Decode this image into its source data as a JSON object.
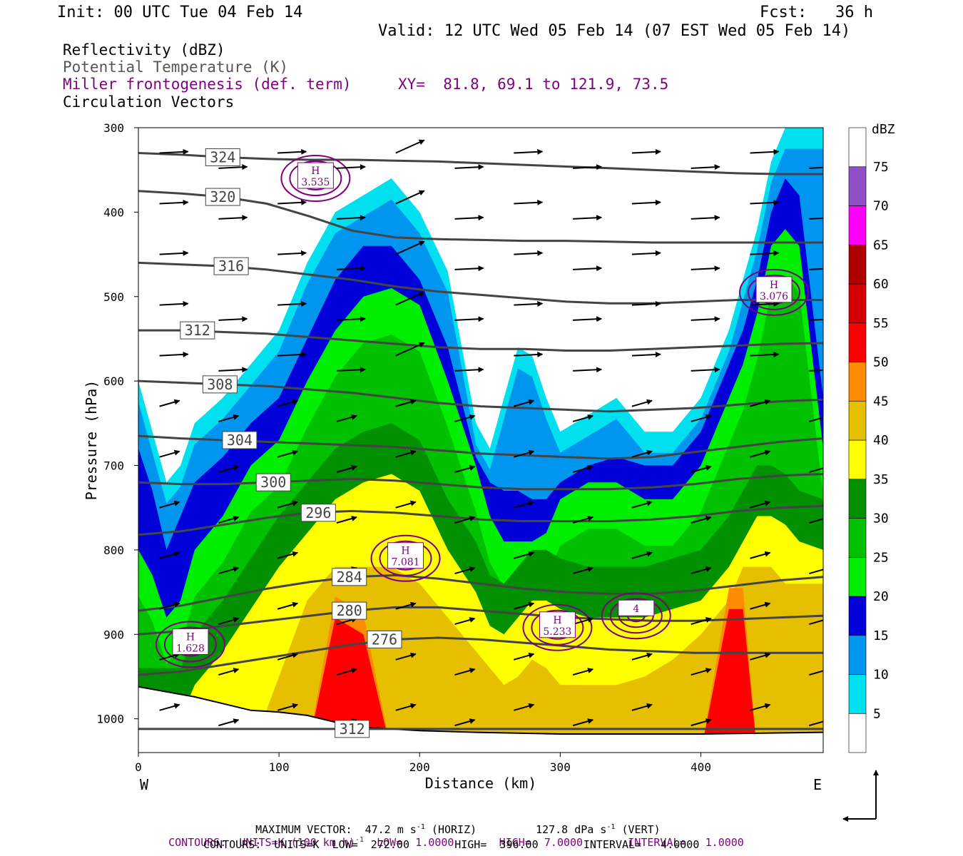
{
  "header": {
    "init": "Init: 00 UTC Tue 04 Feb 14",
    "fcst": "Fcst:   36 h",
    "valid": "Valid: 12 UTC Wed 05 Feb 14 (07 EST Wed 05 Feb 14)"
  },
  "legend": {
    "line1": "Reflectivity (dBZ)",
    "line2": "Potential Temperature (K)",
    "line3": "Miller frontogenesis (def. term)",
    "xy": "XY=  81.8, 69.1 to 121.9, 73.5",
    "line4": "Circulation Vectors"
  },
  "colors": {
    "theta": "#444444",
    "fronto": "#7f007f",
    "vector": "#000000"
  },
  "footer": {
    "max_vector": "MAXIMUM VECTOR:  47.2 m s",
    "max_vector_exp": "-1",
    "max_vector_horiz": " (HORIZ)",
    "max_vector_vert": "127.8 dPa s",
    "max_vector_vert_exp": "-1",
    "max_vector_vert_tail": " (VERT)",
    "contours1": "CONTOURS:  UNITS=K (100 km h)",
    "contours1_exp": "-1",
    "contours1_tail": "  LOW=  1.0000       HIGH=  7.0000       INTERVAL=   1.0000",
    "contours2": "CONTOURS:  UNITS=K  LOW=  272.00       HIGH=  396.00       INTERVAL=   4.0000"
  },
  "chart_data": {
    "type": "heatmap",
    "title": "",
    "xlabel": "Distance (km)",
    "ylabel": "Pressure (hPa)",
    "xlim": [
      0,
      487
    ],
    "ylim": [
      1040,
      300
    ],
    "x_ticks": [
      0,
      100,
      200,
      300,
      400
    ],
    "y_ticks": [
      300,
      400,
      500,
      600,
      700,
      800,
      900,
      1000
    ],
    "x_end_labels": {
      "left": "W",
      "right": "E"
    },
    "colorbar": {
      "unit": "dBZ",
      "levels": [
        5,
        10,
        15,
        20,
        25,
        30,
        35,
        40,
        45,
        50,
        55,
        60,
        65,
        70,
        75
      ],
      "colors": [
        "#ffffff",
        "#00e0ef",
        "#0096f0",
        "#0000d8",
        "#00ee00",
        "#00c000",
        "#009000",
        "#ffff00",
        "#e6c000",
        "#ff8c00",
        "#ff0000",
        "#d60000",
        "#b00000",
        "#ff00ff",
        "#9050c8"
      ]
    },
    "reflectivity_profile_top_hpa": {
      "x": [
        0,
        10,
        20,
        30,
        40,
        60,
        80,
        100,
        120,
        140,
        160,
        180,
        200,
        220,
        240,
        250,
        260,
        270,
        280,
        290,
        300,
        320,
        340,
        360,
        380,
        400,
        420,
        430,
        440,
        450,
        460,
        470,
        487
      ],
      "echo_5": [
        600,
        660,
        720,
        700,
        650,
        620,
        580,
        540,
        460,
        400,
        380,
        360,
        400,
        470,
        650,
        680,
        620,
        560,
        570,
        620,
        660,
        640,
        620,
        660,
        660,
        620,
        540,
        480,
        420,
        340,
        300,
        300,
        300
      ],
      "echo_15": [
        680,
        730,
        800,
        760,
        720,
        690,
        650,
        620,
        550,
        480,
        440,
        440,
        480,
        560,
        690,
        720,
        730,
        730,
        740,
        740,
        720,
        700,
        690,
        700,
        700,
        660,
        580,
        540,
        480,
        400,
        360,
        380,
        620
      ],
      "echo_20": [
        800,
        830,
        880,
        860,
        800,
        760,
        700,
        670,
        600,
        540,
        500,
        490,
        510,
        600,
        700,
        760,
        790,
        790,
        790,
        780,
        740,
        720,
        720,
        740,
        740,
        700,
        620,
        580,
        520,
        440,
        420,
        440,
        680
      ],
      "echo_35": [
        1000,
        1000,
        1000,
        1000,
        960,
        920,
        870,
        820,
        780,
        740,
        720,
        710,
        730,
        800,
        850,
        890,
        900,
        880,
        860,
        860,
        870,
        880,
        880,
        880,
        870,
        860,
        820,
        790,
        760,
        760,
        770,
        790,
        800
      ],
      "echo_40": [
        1040,
        1040,
        1040,
        1040,
        1040,
        1040,
        1040,
        950,
        860,
        820,
        820,
        820,
        840,
        880,
        920,
        940,
        960,
        950,
        930,
        940,
        960,
        960,
        960,
        950,
        930,
        900,
        860,
        820,
        820,
        820,
        840,
        840,
        840
      ],
      "echo_50": [
        1040,
        1040,
        1040,
        1040,
        1040,
        1040,
        1040,
        1040,
        1040,
        880,
        900,
        1040,
        1040,
        1040,
        1040,
        1040,
        1040,
        1040,
        1040,
        1040,
        1040,
        1040,
        1040,
        1040,
        1040,
        1040,
        870,
        870,
        1040,
        1040,
        1040,
        1040,
        1040
      ]
    },
    "terrain_surface_hpa": {
      "x": [
        0,
        20,
        40,
        60,
        80,
        100,
        120,
        140,
        160,
        180,
        200,
        240,
        300,
        400,
        487
      ],
      "p": [
        962,
        968,
        974,
        982,
        990,
        992,
        996,
        1004,
        1010,
        1012,
        1014,
        1016,
        1018,
        1018,
        1016
      ]
    },
    "theta_isentropes_K": [
      {
        "label": "324",
        "p": [
          330,
          332,
          335,
          337,
          338,
          338,
          339,
          340,
          342,
          344,
          346,
          348,
          350,
          352,
          354,
          355,
          355
        ]
      },
      {
        "label": "320",
        "p": [
          375,
          378,
          382,
          390,
          405,
          422,
          430,
          432,
          433,
          434,
          434,
          435,
          436,
          436,
          436,
          436,
          436
        ]
      },
      {
        "label": "316",
        "p": [
          460,
          462,
          464,
          468,
          474,
          480,
          488,
          494,
          498,
          502,
          506,
          508,
          508,
          506,
          504,
          504,
          504
        ]
      },
      {
        "label": "312",
        "p": [
          540,
          540,
          542,
          544,
          548,
          552,
          556,
          560,
          562,
          562,
          564,
          564,
          562,
          560,
          558,
          556,
          555
        ]
      },
      {
        "label": "308",
        "p": [
          600,
          602,
          604,
          606,
          610,
          614,
          620,
          626,
          630,
          632,
          634,
          636,
          634,
          632,
          628,
          624,
          622
        ]
      },
      {
        "label": "304",
        "p": [
          665,
          668,
          670,
          672,
          674,
          676,
          678,
          682,
          686,
          688,
          690,
          692,
          690,
          684,
          678,
          672,
          668
        ]
      },
      {
        "label": "300",
        "p": [
          720,
          722,
          722,
          720,
          718,
          716,
          718,
          722,
          726,
          728,
          728,
          728,
          726,
          722,
          716,
          712,
          710
        ]
      },
      {
        "label": "296",
        "p": [
          782,
          778,
          770,
          762,
          756,
          754,
          756,
          760,
          764,
          766,
          766,
          766,
          764,
          760,
          754,
          750,
          748
        ]
      },
      {
        "label": "284",
        "p": [
          872,
          866,
          856,
          846,
          838,
          832,
          830,
          834,
          840,
          846,
          850,
          852,
          852,
          848,
          842,
          836,
          832
        ]
      },
      {
        "label": "280",
        "p": [
          900,
          896,
          890,
          884,
          878,
          872,
          868,
          868,
          872,
          876,
          880,
          882,
          884,
          884,
          882,
          880,
          878
        ]
      },
      {
        "label": "276",
        "p": [
          948,
          944,
          936,
          928,
          920,
          912,
          906,
          904,
          906,
          910,
          914,
          918,
          920,
          922,
          922,
          922,
          922
        ]
      },
      {
        "label": "312",
        "p": [
          1012,
          1012,
          1012,
          1012,
          1012,
          1012,
          1012,
          1012,
          1012,
          1012,
          1012,
          1012,
          1012,
          1012,
          1012,
          1012,
          1012
        ]
      }
    ],
    "frontogenesis_maxima": [
      {
        "label": "H",
        "value": "3.535",
        "x": 126,
        "p": 360
      },
      {
        "label": "H",
        "value": "3.076",
        "x": 452,
        "p": 495
      },
      {
        "label": "H",
        "value": "7.081",
        "x": 190,
        "p": 810
      },
      {
        "label": "H",
        "value": "5.233",
        "x": 298,
        "p": 892
      },
      {
        "label": "H",
        "value": "1.628",
        "x": 37,
        "p": 912
      },
      {
        "label": "",
        "value": "4",
        "x": 354,
        "p": 878
      }
    ],
    "grid": false,
    "legend_position": "colorbar-right"
  }
}
